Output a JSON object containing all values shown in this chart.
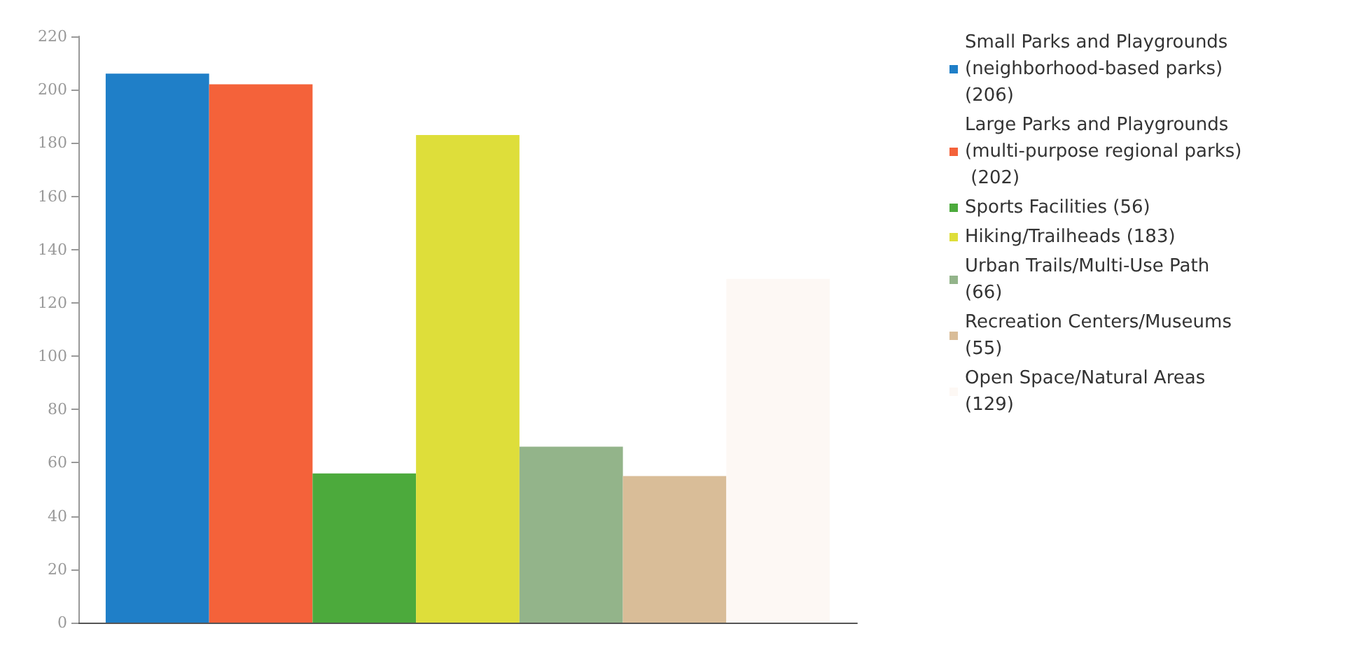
{
  "chart_data": {
    "type": "bar",
    "categories": [
      null
    ],
    "series": [
      {
        "name": "Small Parks and Playgrounds (neighborhood-based parks) (206)",
        "color": "#1f7fc8",
        "values": [
          206
        ]
      },
      {
        "name": "Large Parks and Playgrounds (multi-purpose regional parks) (202)",
        "color": "#f4623a",
        "values": [
          202
        ]
      },
      {
        "name": "Sports Facilities (56)",
        "color": "#4caa3c",
        "values": [
          56
        ]
      },
      {
        "name": "Hiking/Trailheads (183)",
        "color": "#dede3a",
        "values": [
          183
        ]
      },
      {
        "name": "Urban Trails/Multi-Use Path (66)",
        "color": "#93b48a",
        "values": [
          66
        ]
      },
      {
        "name": "Recreation Centers/Museums (55)",
        "color": "#d9bd98",
        "values": [
          55
        ]
      },
      {
        "name": "Open Space/Natural Areas (129)",
        "color": "#fdf8f4",
        "values": [
          129
        ]
      }
    ],
    "ylim": [
      0,
      220
    ],
    "yticks": [
      0,
      20,
      40,
      60,
      80,
      100,
      120,
      140,
      160,
      180,
      200,
      220
    ],
    "grid": false,
    "legend": "right",
    "tick_labels": "y"
  }
}
